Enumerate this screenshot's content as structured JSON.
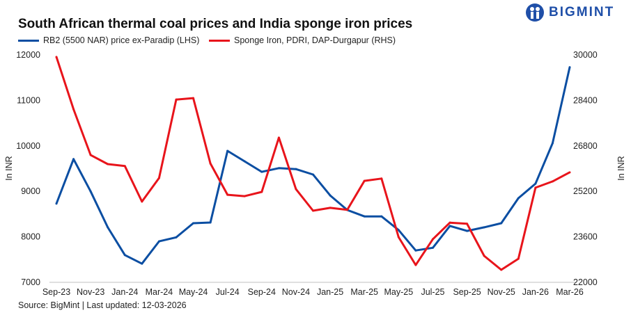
{
  "brand": {
    "name": "BIGMINT",
    "color": "#1f4fa8"
  },
  "chart_data": {
    "type": "line",
    "title": "South African thermal coal prices and India sponge iron prices",
    "source": "Source: BigMint | Last updated: 12-03-2026",
    "x": [
      "Sep-23",
      "Oct-23",
      "Nov-23",
      "Dec-23",
      "Jan-24",
      "Feb-24",
      "Mar-24",
      "Apr-24",
      "May-24",
      "Jun-24",
      "Jul-24",
      "Aug-24",
      "Sep-24",
      "Oct-24",
      "Nov-24",
      "Dec-24",
      "Jan-25",
      "Feb-25",
      "Mar-25",
      "Apr-25",
      "May-25",
      "Jun-25",
      "Jul-25",
      "Aug-25",
      "Sep-25",
      "Oct-25",
      "Nov-25",
      "Dec-25",
      "Jan-26",
      "Feb-26",
      "Mar-26"
    ],
    "x_tick_labels": [
      "Sep-23",
      "Nov-23",
      "Jan-24",
      "Mar-24",
      "May-24",
      "Jul-24",
      "Sep-24",
      "Nov-24",
      "Jan-25",
      "Mar-25",
      "May-25",
      "Jul-25",
      "Sep-25",
      "Nov-25",
      "Jan-26",
      "Mar-26"
    ],
    "ylabel_left": "In INR",
    "ylabel_right": "In INR",
    "ylim_left": [
      7000,
      12000
    ],
    "yticks_left": [
      7000,
      8000,
      9000,
      10000,
      11000,
      12000
    ],
    "ylim_right": [
      22000,
      30000
    ],
    "yticks_right": [
      22000,
      23600,
      25200,
      26800,
      28400,
      30000
    ],
    "grid": false,
    "legend_placement": "top-left",
    "series": [
      {
        "name": "RB2 (5500 NAR) price ex-Paradip (LHS)",
        "axis": "left",
        "color": "#0b4ea2",
        "values": [
          8730,
          9710,
          9000,
          8210,
          7600,
          7410,
          7900,
          7990,
          8300,
          8315,
          9890,
          9660,
          9430,
          9510,
          9490,
          9370,
          8910,
          8590,
          8450,
          8450,
          8150,
          7700,
          7760,
          8240,
          8130,
          8210,
          8300,
          8850,
          9170,
          10060,
          11730
        ]
      },
      {
        "name": "Sponge Iron, PDRI, DAP-Durgapur (RHS)",
        "axis": "right",
        "color": "#e8141b",
        "values": [
          29930,
          28090,
          26480,
          26160,
          26090,
          24840,
          25670,
          28430,
          28480,
          26180,
          25080,
          25030,
          25180,
          27090,
          25280,
          24520,
          24620,
          24550,
          25570,
          25650,
          23590,
          22610,
          23520,
          24100,
          24060,
          22930,
          22440,
          22830,
          25330,
          25550,
          25870
        ]
      }
    ]
  }
}
